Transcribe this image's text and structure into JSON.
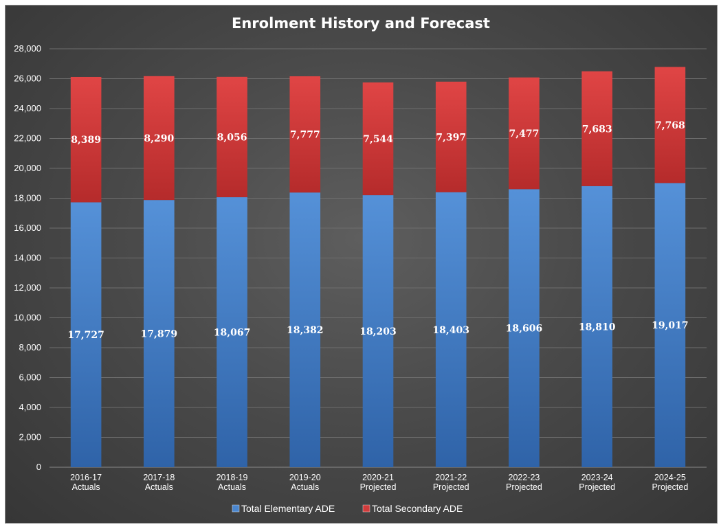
{
  "chart_data": {
    "type": "bar",
    "stacked": true,
    "title": "Enrolment History and Forecast",
    "categories": [
      [
        "2016-17",
        "Actuals"
      ],
      [
        "2017-18",
        "Actuals"
      ],
      [
        "2018-19",
        "Actuals"
      ],
      [
        "2019-20",
        "Actuals"
      ],
      [
        "2020-21",
        "Projected"
      ],
      [
        "2021-22",
        "Projected"
      ],
      [
        "2022-23",
        "Projected"
      ],
      [
        "2023-24",
        "Projected"
      ],
      [
        "2024-25",
        "Projected"
      ]
    ],
    "series": [
      {
        "name": "Total Elementary ADE",
        "color": "#4a86cf",
        "values": [
          17727,
          17879,
          18067,
          18382,
          18203,
          18403,
          18606,
          18810,
          19017
        ],
        "labels": [
          "17,727",
          "17,879",
          "18,067",
          "18,382",
          "18,203",
          "18,403",
          "18,606",
          "18,810",
          "19,017"
        ]
      },
      {
        "name": "Total Secondary ADE",
        "color": "#d13b3b",
        "values": [
          8389,
          8290,
          8056,
          7777,
          7544,
          7397,
          7477,
          7683,
          7768
        ],
        "labels": [
          "8,389",
          "8,290",
          "8,056",
          "7,777",
          "7,544",
          "7,397",
          "7,477",
          "7,683",
          "7,768"
        ]
      }
    ],
    "yticks": [
      "0",
      "2,000",
      "4,000",
      "6,000",
      "8,000",
      "10,000",
      "12,000",
      "14,000",
      "16,000",
      "18,000",
      "20,000",
      "22,000",
      "24,000",
      "26,000",
      "28,000"
    ],
    "ylim": [
      0,
      28000
    ],
    "grid": true,
    "legend": "bottom"
  }
}
